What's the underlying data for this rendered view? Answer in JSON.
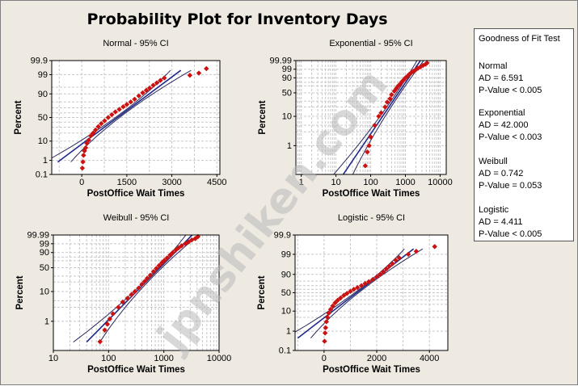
{
  "title": "Probability Plot for Inventory Days",
  "watermark": "jpnshiken.com",
  "goodness_of_fit": {
    "title": "Goodness of Fit Test",
    "entries": [
      {
        "name": "Normal",
        "ad": "AD = 6.591",
        "p": "P-Value < 0.005"
      },
      {
        "name": "Exponential",
        "ad": "AD = 42.000",
        "p": "P-Value < 0.003"
      },
      {
        "name": "Weibull",
        "ad": "AD = 0.742",
        "p": "P-Value = 0.053"
      },
      {
        "name": "Logistic",
        "ad": "AD = 4.411",
        "p": "P-Value < 0.005"
      }
    ]
  },
  "colors": {
    "points": "#cc1111",
    "fit_line": "#1f2a8c",
    "ci_line": "#2a2a5a",
    "grid": "#c8c8c8"
  },
  "chart_data": [
    {
      "type": "scatter",
      "title": "Normal - 95% CI",
      "xlabel": "PostOffice Wait Times",
      "ylabel": "Percent",
      "x_scale": "linear",
      "xlim": [
        -1000,
        4600
      ],
      "x_ticks": [
        0,
        1500,
        3000,
        4500
      ],
      "y_scale": "normal",
      "ylim": [
        0.1,
        99.9
      ],
      "y_ticks": [
        0.1,
        1,
        10,
        50,
        90,
        99,
        99.9
      ],
      "y_ticks_minor": [
        5,
        20,
        30,
        40,
        60,
        70,
        80,
        95
      ],
      "fit_line": {
        "x": [
          -800,
          3300
        ]
      },
      "points": [
        [
          20,
          0.3
        ],
        [
          40,
          0.8
        ],
        [
          60,
          2
        ],
        [
          90,
          3.5
        ],
        [
          130,
          5
        ],
        [
          170,
          8
        ],
        [
          230,
          11
        ],
        [
          300,
          16
        ],
        [
          380,
          20
        ],
        [
          460,
          25
        ],
        [
          550,
          31
        ],
        [
          650,
          37
        ],
        [
          760,
          43
        ],
        [
          880,
          50
        ],
        [
          1000,
          56
        ],
        [
          1120,
          62
        ],
        [
          1250,
          67
        ],
        [
          1380,
          72
        ],
        [
          1500,
          76
        ],
        [
          1630,
          80
        ],
        [
          1760,
          84
        ],
        [
          1900,
          88
        ],
        [
          2030,
          91
        ],
        [
          2150,
          93
        ],
        [
          2260,
          94.5
        ],
        [
          2380,
          96
        ],
        [
          2500,
          97
        ],
        [
          2620,
          97.8
        ],
        [
          2750,
          98.4
        ],
        [
          3600,
          98.9
        ],
        [
          3900,
          99.2
        ],
        [
          4150,
          99.6
        ]
      ]
    },
    {
      "type": "scatter",
      "title": "Exponential - 95% CI",
      "xlabel": "PostOffice Wait Times",
      "ylabel": "Percent",
      "x_scale": "log",
      "xlim": [
        0.7,
        15000
      ],
      "x_ticks": [
        1,
        10,
        100,
        1000,
        10000
      ],
      "y_scale": "exponential",
      "ylim": [
        0.1,
        99.99
      ],
      "y_ticks": [
        1,
        10,
        50,
        90,
        99,
        99.99
      ],
      "y_ticks_minor": [
        3,
        5,
        20,
        30,
        70,
        80
      ],
      "fit_line": {
        "x": [
          1.3,
          4500
        ]
      },
      "points": [
        [
          70,
          0.2
        ],
        [
          80,
          0.6
        ],
        [
          90,
          1
        ],
        [
          100,
          2
        ],
        [
          130,
          5
        ],
        [
          170,
          10
        ],
        [
          200,
          13
        ],
        [
          260,
          20
        ],
        [
          300,
          28
        ],
        [
          360,
          35
        ],
        [
          400,
          45
        ],
        [
          480,
          55
        ],
        [
          550,
          63
        ],
        [
          620,
          70
        ],
        [
          700,
          75
        ],
        [
          800,
          82
        ],
        [
          900,
          86
        ],
        [
          1000,
          90
        ],
        [
          1150,
          93
        ],
        [
          1300,
          95.5
        ],
        [
          1500,
          97
        ],
        [
          1700,
          98
        ],
        [
          2000,
          98.8
        ],
        [
          2300,
          99.3
        ],
        [
          2700,
          99.6
        ],
        [
          3200,
          99.8
        ],
        [
          3800,
          99.9
        ],
        [
          4200,
          99.95
        ]
      ]
    },
    {
      "type": "scatter",
      "title": "Weibull - 95% CI",
      "xlabel": "PostOffice Wait Times",
      "ylabel": "Percent",
      "x_scale": "log",
      "xlim": [
        10,
        10000
      ],
      "x_ticks": [
        10,
        100,
        1000,
        10000
      ],
      "y_scale": "weibull",
      "ylim": [
        0.1,
        99.99
      ],
      "y_ticks": [
        1,
        10,
        50,
        90,
        99,
        99.99
      ],
      "y_ticks_minor": [
        3,
        5,
        20,
        30,
        70,
        80
      ],
      "fit_line": {
        "x": [
          40,
          5000
        ]
      },
      "points": [
        [
          70,
          0.2
        ],
        [
          85,
          0.5
        ],
        [
          95,
          0.8
        ],
        [
          105,
          1.2
        ],
        [
          120,
          1.8
        ],
        [
          150,
          3
        ],
        [
          180,
          4.5
        ],
        [
          220,
          6
        ],
        [
          260,
          8
        ],
        [
          300,
          10
        ],
        [
          350,
          13
        ],
        [
          400,
          17
        ],
        [
          450,
          21
        ],
        [
          500,
          26
        ],
        [
          570,
          32
        ],
        [
          650,
          40
        ],
        [
          730,
          48
        ],
        [
          820,
          56
        ],
        [
          920,
          64
        ],
        [
          1020,
          71
        ],
        [
          1150,
          78
        ],
        [
          1300,
          85
        ],
        [
          1450,
          90
        ],
        [
          1650,
          94
        ],
        [
          1850,
          96.5
        ],
        [
          2100,
          98
        ],
        [
          2450,
          99
        ],
        [
          2800,
          99.5
        ],
        [
          3200,
          99.8
        ],
        [
          3700,
          99.9
        ],
        [
          4150,
          99.97
        ]
      ]
    },
    {
      "type": "scatter",
      "title": "Logistic - 95% CI",
      "xlabel": "PostOffice Wait Times",
      "ylabel": "Percent",
      "x_scale": "linear",
      "xlim": [
        -1100,
        4700
      ],
      "x_ticks": [
        0,
        2000,
        4000
      ],
      "y_scale": "logistic",
      "ylim": [
        0.1,
        99.9
      ],
      "y_ticks": [
        0.1,
        1,
        10,
        50,
        90,
        99,
        99.9
      ],
      "y_ticks_minor": [
        5,
        20,
        30,
        40,
        60,
        70,
        80,
        95
      ],
      "fit_line": {
        "x": [
          -1000,
          3400
        ]
      },
      "points": [
        [
          20,
          0.3
        ],
        [
          40,
          0.8
        ],
        [
          60,
          1.5
        ],
        [
          90,
          3
        ],
        [
          130,
          5
        ],
        [
          180,
          8
        ],
        [
          250,
          12
        ],
        [
          330,
          17
        ],
        [
          420,
          23
        ],
        [
          520,
          29
        ],
        [
          630,
          35
        ],
        [
          750,
          42
        ],
        [
          870,
          48
        ],
        [
          1000,
          54
        ],
        [
          1130,
          60
        ],
        [
          1270,
          65
        ],
        [
          1420,
          70
        ],
        [
          1560,
          75
        ],
        [
          1700,
          79
        ],
        [
          1850,
          83
        ],
        [
          2000,
          87
        ],
        [
          2130,
          90
        ],
        [
          2250,
          92.5
        ],
        [
          2370,
          94.5
        ],
        [
          2480,
          96
        ],
        [
          2600,
          97
        ],
        [
          2720,
          98
        ],
        [
          2850,
          98.5
        ],
        [
          3200,
          99
        ],
        [
          3500,
          99.3
        ],
        [
          4200,
          99.6
        ]
      ]
    }
  ]
}
